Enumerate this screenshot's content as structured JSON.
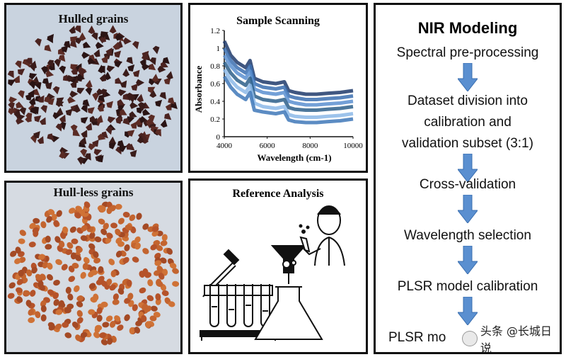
{
  "panels": {
    "hulled": {
      "title": "Hulled grains"
    },
    "hull_less": {
      "title": "Hull-less grains"
    },
    "scanning": {
      "title": "Sample Scanning"
    },
    "reference": {
      "title": "Reference Analysis"
    },
    "nir": {
      "title": "NIR Modeling",
      "steps": [
        "Spectral pre-processing",
        "Dataset division into",
        "calibration and",
        "validation subset (3:1)",
        "Cross-validation",
        "Wavelength selection",
        "PLSR model calibration",
        "PLSR mo"
      ]
    }
  },
  "watermark": {
    "text": "头条 @长城日说"
  },
  "chart_data": {
    "type": "line",
    "title": "Sample Scanning",
    "xlabel": "Wavelength (cm-1)",
    "ylabel": "Absorbance",
    "xlim": [
      4000,
      10000
    ],
    "ylim": [
      0,
      1.2
    ],
    "x_ticks": [
      "4000",
      "6000",
      "8000",
      "10000"
    ],
    "y_ticks": [
      "0",
      "0.2",
      "0.4",
      "0.6",
      "0.8",
      "1",
      "1.2"
    ],
    "x": [
      4000,
      4300,
      4600,
      5000,
      5200,
      5400,
      5800,
      6400,
      6800,
      7000,
      7300,
      7800,
      8300,
      8800,
      9400,
      10000
    ],
    "series": [
      {
        "color": "#1f3a6b",
        "values": [
          1.08,
          0.92,
          0.84,
          0.78,
          0.86,
          0.66,
          0.62,
          0.6,
          0.62,
          0.52,
          0.5,
          0.48,
          0.48,
          0.49,
          0.5,
          0.52
        ]
      },
      {
        "color": "#3b6fb0",
        "values": [
          1.0,
          0.86,
          0.78,
          0.72,
          0.8,
          0.6,
          0.56,
          0.54,
          0.56,
          0.46,
          0.44,
          0.42,
          0.42,
          0.43,
          0.44,
          0.46
        ]
      },
      {
        "color": "#5a8fd0",
        "values": [
          0.92,
          0.8,
          0.72,
          0.66,
          0.74,
          0.54,
          0.5,
          0.48,
          0.5,
          0.4,
          0.38,
          0.36,
          0.36,
          0.37,
          0.38,
          0.4
        ]
      },
      {
        "color": "#2d5f8a",
        "values": [
          0.84,
          0.72,
          0.64,
          0.58,
          0.66,
          0.46,
          0.42,
          0.4,
          0.42,
          0.33,
          0.31,
          0.3,
          0.3,
          0.31,
          0.32,
          0.34
        ]
      },
      {
        "color": "#8cb8e8",
        "values": [
          0.76,
          0.64,
          0.56,
          0.5,
          0.58,
          0.38,
          0.34,
          0.32,
          0.34,
          0.25,
          0.23,
          0.22,
          0.22,
          0.23,
          0.24,
          0.26
        ]
      },
      {
        "color": "#3f78b8",
        "values": [
          0.68,
          0.56,
          0.48,
          0.42,
          0.5,
          0.3,
          0.28,
          0.26,
          0.28,
          0.19,
          0.17,
          0.16,
          0.16,
          0.17,
          0.18,
          0.2
        ]
      }
    ]
  }
}
